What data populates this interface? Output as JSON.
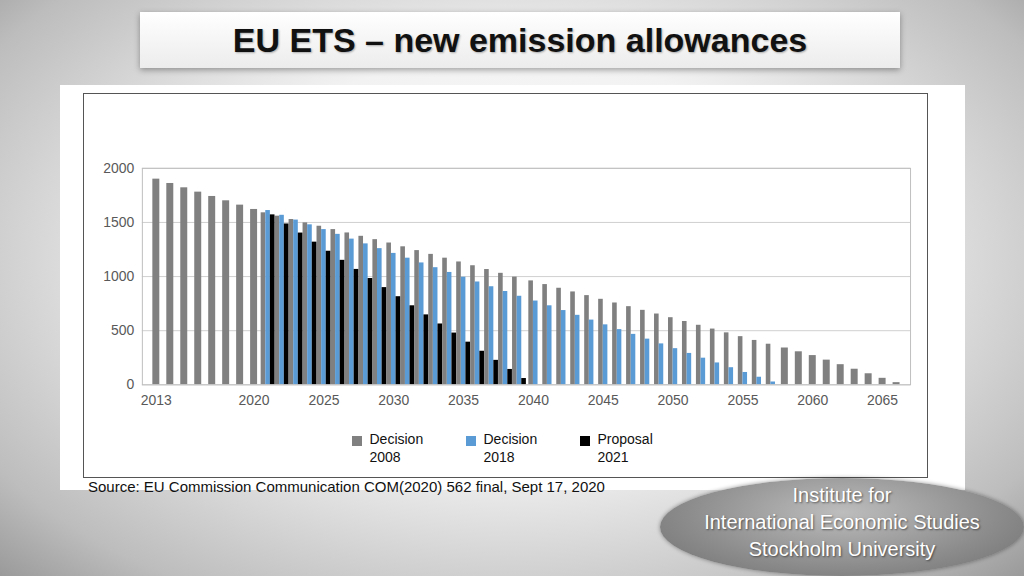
{
  "chart_data": {
    "type": "bar",
    "title": "EU ETS – new emission allowances",
    "source": "Source: EU Commission Communication COM(2020) 562 final, Sept 17, 2020",
    "annotations": [
      "Institute for",
      "International Economic Studies",
      "Stockholm University"
    ],
    "x": [
      2013,
      2014,
      2015,
      2016,
      2017,
      2018,
      2019,
      2020,
      2021,
      2022,
      2023,
      2024,
      2025,
      2026,
      2027,
      2028,
      2029,
      2030,
      2031,
      2032,
      2033,
      2034,
      2035,
      2036,
      2037,
      2038,
      2039,
      2040,
      2041,
      2042,
      2043,
      2044,
      2045,
      2046,
      2047,
      2048,
      2049,
      2050,
      2051,
      2052,
      2053,
      2054,
      2055,
      2056,
      2057,
      2058,
      2059,
      2060,
      2061,
      2062,
      2063,
      2064,
      2065,
      2066
    ],
    "series": [
      {
        "name": "Decision 2008",
        "color": "#808080",
        "values": [
          1900,
          1860,
          1820,
          1780,
          1740,
          1700,
          1660,
          1620,
          1589,
          1558,
          1527,
          1496,
          1465,
          1434,
          1403,
          1372,
          1341,
          1310,
          1275,
          1240,
          1205,
          1170,
          1135,
          1100,
          1065,
          1030,
          995,
          960,
          926,
          892,
          858,
          824,
          790,
          756,
          722,
          688,
          654,
          620,
          585,
          550,
          515,
          480,
          445,
          410,
          375,
          340,
          305,
          270,
          228,
          186,
          144,
          102,
          60,
          20
        ]
      },
      {
        "name": "Decision 2018",
        "color": "#5b9bd5",
        "values": [
          null,
          null,
          null,
          null,
          null,
          null,
          null,
          null,
          1610,
          1566,
          1522,
          1478,
          1434,
          1390,
          1346,
          1302,
          1258,
          1214,
          1170,
          1126,
          1082,
          1038,
          994,
          950,
          906,
          862,
          818,
          774,
          730,
          686,
          642,
          598,
          554,
          510,
          466,
          422,
          378,
          334,
          290,
          246,
          202,
          158,
          114,
          70,
          26,
          null,
          null,
          null,
          null,
          null,
          null,
          null,
          null,
          null
        ]
      },
      {
        "name": "Proposal 2021",
        "color": "#000000",
        "values": [
          null,
          null,
          null,
          null,
          null,
          null,
          null,
          null,
          1570,
          1486,
          1402,
          1318,
          1234,
          1150,
          1066,
          982,
          898,
          814,
          730,
          646,
          562,
          478,
          394,
          310,
          226,
          142,
          58,
          null,
          null,
          null,
          null,
          null,
          null,
          null,
          null,
          null,
          null,
          null,
          null,
          null,
          null,
          null,
          null,
          null,
          null,
          null,
          null,
          null,
          null,
          null,
          null,
          null,
          null,
          null
        ]
      }
    ],
    "xlim": [
      2012,
      2067
    ],
    "xticks": [
      2013,
      2020,
      2025,
      2030,
      2035,
      2040,
      2045,
      2050,
      2055,
      2060,
      2065
    ],
    "ylim": [
      0,
      2000
    ],
    "yticks": [
      0,
      500,
      1000,
      1500,
      2000
    ],
    "grid": true,
    "legend": "bottom"
  }
}
